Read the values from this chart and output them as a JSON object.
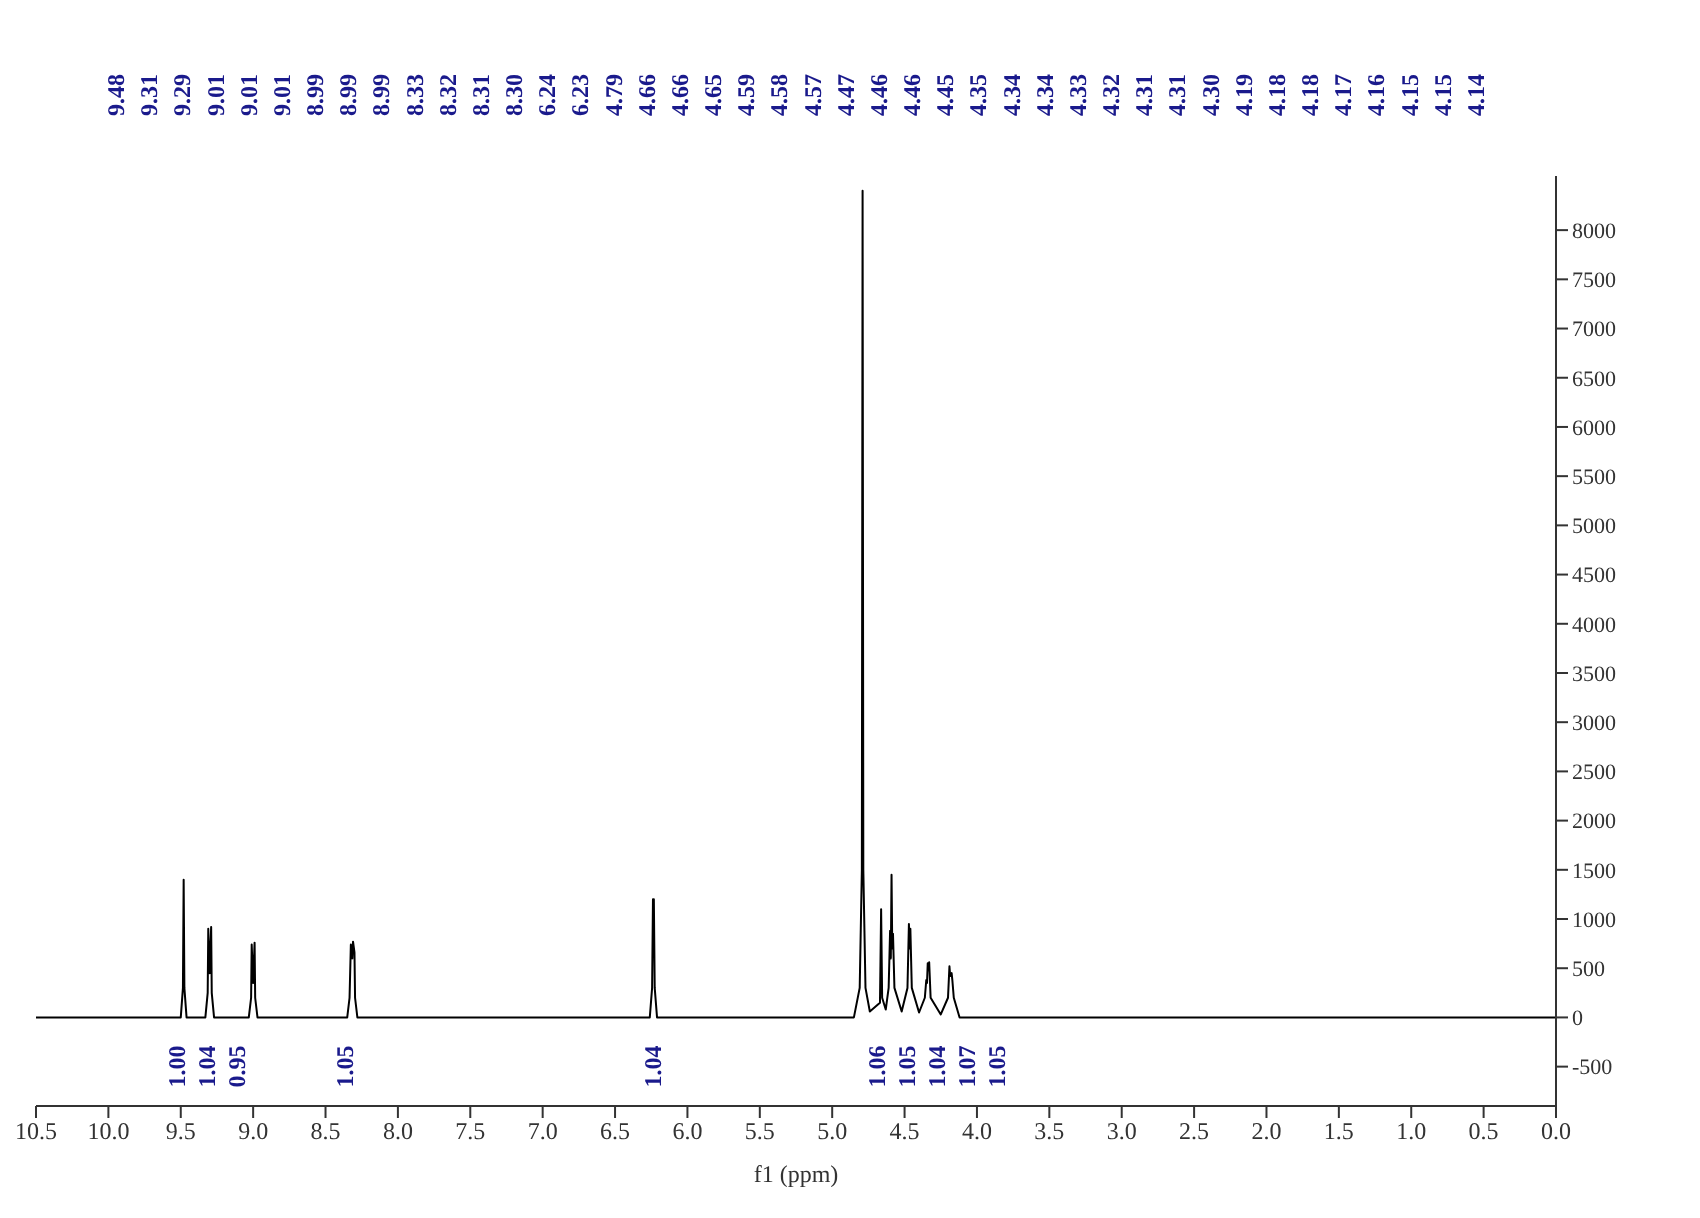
{
  "chart_data": {
    "type": "line",
    "xlabel": "f1 (ppm)",
    "marker": "none",
    "xlim": [
      10.5,
      0
    ],
    "xticks": [
      10.5,
      {
        "value": 10,
        "label": "10.0"
      },
      9.5,
      {
        "value": 9,
        "label": "9.0"
      },
      8.5,
      {
        "value": 8,
        "label": "8.0"
      },
      7.5,
      {
        "value": 7,
        "label": "7.0"
      },
      6.5,
      {
        "value": 6,
        "label": "6.0"
      },
      5.5,
      {
        "value": 5,
        "label": "5.0"
      },
      4.5,
      {
        "value": 4,
        "label": "4.0"
      },
      3.5,
      {
        "value": 3,
        "label": "3.0"
      },
      2.5,
      {
        "value": 2,
        "label": "2.0"
      },
      1.5,
      {
        "value": 1,
        "label": "1.0"
      },
      0.5,
      {
        "value": 0,
        "label": "0.0"
      }
    ],
    "ylim": [
      -900,
      8550
    ],
    "yticks": [
      -500,
      0,
      500,
      1000,
      1500,
      2000,
      2500,
      3000,
      3500,
      4000,
      4500,
      5000,
      5500,
      6000,
      6500,
      7000,
      7500,
      8000
    ],
    "series": [
      {
        "color": "#000000",
        "x": [
          10.5,
          9.5,
          9.485,
          9.48,
          9.475,
          9.46,
          9.33,
          9.314,
          9.31,
          9.3,
          9.29,
          9.286,
          9.27,
          9.03,
          9.014,
          9.01,
          9.0,
          8.99,
          8.986,
          8.97,
          8.35,
          8.334,
          8.325,
          8.315,
          8.31,
          8.3,
          8.296,
          8.28,
          6.26,
          6.244,
          6.238,
          6.235,
          6.232,
          6.226,
          6.21,
          4.85,
          4.81,
          4.795,
          4.79,
          4.785,
          4.77,
          4.74,
          4.67,
          4.662,
          4.655,
          4.63,
          4.61,
          4.6,
          4.595,
          4.59,
          4.585,
          4.58,
          4.57,
          4.52,
          4.48,
          4.47,
          4.465,
          4.46,
          4.45,
          4.4,
          4.36,
          4.35,
          4.345,
          4.34,
          4.335,
          4.33,
          4.32,
          4.25,
          4.2,
          4.19,
          4.185,
          4.175,
          4.17,
          4.16,
          4.12,
          0
        ],
        "values": [
          0,
          0,
          300,
          1400,
          300,
          0,
          0,
          250,
          900,
          450,
          920,
          250,
          0,
          0,
          200,
          740,
          350,
          760,
          200,
          0,
          0,
          200,
          740,
          600,
          770,
          660,
          200,
          0,
          0,
          300,
          1200,
          1100,
          1200,
          300,
          0,
          0,
          300,
          1500,
          8400,
          1500,
          300,
          60,
          150,
          1100,
          200,
          80,
          300,
          880,
          600,
          1450,
          700,
          850,
          300,
          60,
          300,
          950,
          700,
          900,
          300,
          50,
          200,
          380,
          350,
          550,
          480,
          560,
          200,
          30,
          200,
          520,
          420,
          450,
          380,
          200,
          0,
          0
        ]
      }
    ],
    "annotations": [
      "9.48",
      "9.31",
      "9.29",
      "9.01",
      "9.01",
      "9.01",
      "8.99",
      "8.99",
      "8.99",
      "8.33",
      "8.32",
      "8.31",
      "8.30",
      "6.24",
      "6.23",
      "4.79",
      "4.66",
      "4.66",
      "4.65",
      "4.59",
      "4.58",
      "4.57",
      "4.47",
      "4.46",
      "4.46",
      "4.45",
      "4.35",
      "4.34",
      "4.34",
      "4.33",
      "4.32",
      "4.31",
      "4.31",
      "4.30",
      "4.19",
      "4.18",
      "4.18",
      "4.17",
      "4.16",
      "4.15",
      "4.15",
      "4.14",
      "1.00",
      "1.04",
      "0.95",
      "1.05",
      "1.04",
      "1.06",
      "1.05",
      "1.04",
      "1.07",
      "1.05"
    ]
  }
}
